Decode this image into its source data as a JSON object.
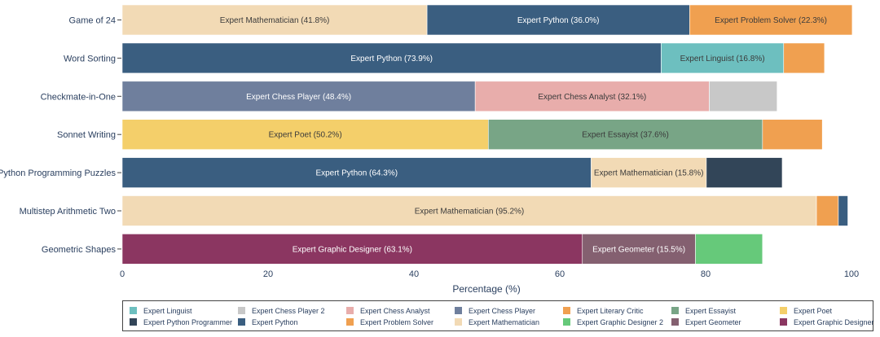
{
  "chart_data": {
    "type": "bar",
    "orientation": "horizontal",
    "stacked": true,
    "xlabel": "Percentage (%)",
    "xlim": [
      0,
      100
    ],
    "xticks": [
      0,
      20,
      40,
      60,
      80,
      100
    ],
    "grid": false,
    "legend_position": "bottom",
    "categories": [
      "Game of 24",
      "Word Sorting",
      "Checkmate-in-One",
      "Sonnet Writing",
      "Python Programming Puzzles",
      "Multistep Arithmetic Two",
      "Geometric Shapes"
    ],
    "rows": [
      {
        "category": "Game of 24",
        "segments": [
          {
            "expert": "Expert Mathematician",
            "value": 41.8,
            "label": "Expert Mathematician (41.8%)"
          },
          {
            "expert": "Expert Python",
            "value": 36.0,
            "label": "Expert Python (36.0%)"
          },
          {
            "expert": "Expert Problem Solver",
            "value": 22.3,
            "label": "Expert Problem Solver (22.3%)"
          }
        ]
      },
      {
        "category": "Word Sorting",
        "segments": [
          {
            "expert": "Expert Python",
            "value": 73.9,
            "label": "Expert Python (73.9%)"
          },
          {
            "expert": "Expert Linguist",
            "value": 16.8,
            "label": "Expert Linguist (16.8%)"
          },
          {
            "expert": "Expert Literary Critic",
            "value": 5.6,
            "label": ""
          }
        ]
      },
      {
        "category": "Checkmate-in-One",
        "segments": [
          {
            "expert": "Expert Chess Player",
            "value": 48.4,
            "label": "Expert Chess Player (48.4%)"
          },
          {
            "expert": "Expert Chess Analyst",
            "value": 32.1,
            "label": "Expert Chess Analyst (32.1%)"
          },
          {
            "expert": "Expert Chess Player 2",
            "value": 9.3,
            "label": ""
          }
        ]
      },
      {
        "category": "Sonnet Writing",
        "segments": [
          {
            "expert": "Expert Poet",
            "value": 50.2,
            "label": "Expert Poet (50.2%)"
          },
          {
            "expert": "Expert Essayist",
            "value": 37.6,
            "label": "Expert Essayist (37.6%)"
          },
          {
            "expert": "Expert Literary Critic",
            "value": 8.2,
            "label": ""
          }
        ]
      },
      {
        "category": "Python Programming Puzzles",
        "segments": [
          {
            "expert": "Expert Python",
            "value": 64.3,
            "label": "Expert Python (64.3%)"
          },
          {
            "expert": "Expert Mathematician",
            "value": 15.8,
            "label": "Expert Mathematician (15.8%)"
          },
          {
            "expert": "Expert Python Programmer",
            "value": 10.4,
            "label": ""
          }
        ]
      },
      {
        "category": "Multistep Arithmetic Two",
        "segments": [
          {
            "expert": "Expert Mathematician",
            "value": 95.2,
            "label": "Expert Mathematician (95.2%)"
          },
          {
            "expert": "Expert Problem Solver",
            "value": 3.0,
            "label": ""
          },
          {
            "expert": "Expert Python",
            "value": 1.3,
            "label": ""
          }
        ]
      },
      {
        "category": "Geometric Shapes",
        "segments": [
          {
            "expert": "Expert Graphic Designer",
            "value": 63.1,
            "label": "Expert Graphic Designer (63.1%)"
          },
          {
            "expert": "Expert Geometer",
            "value": 15.5,
            "label": "Expert Geometer (15.5%)"
          },
          {
            "expert": "Expert Graphic Designer 2",
            "value": 9.2,
            "label": ""
          }
        ]
      }
    ],
    "legend": [
      {
        "name": "Expert Linguist",
        "color": "#6dbfbf"
      },
      {
        "name": "Expert Chess Player 2",
        "color": "#c8c8c8"
      },
      {
        "name": "Expert Chess Analyst",
        "color": "#e8adab"
      },
      {
        "name": "Expert Chess Player",
        "color": "#6f7f9d"
      },
      {
        "name": "Expert Literary Critic",
        "color": "#f0a050"
      },
      {
        "name": "Expert Essayist",
        "color": "#78a586"
      },
      {
        "name": "Expert Poet",
        "color": "#f4cf6a"
      },
      {
        "name": "Expert Python Programmer",
        "color": "#324558"
      },
      {
        "name": "Expert Python",
        "color": "#3a5e80"
      },
      {
        "name": "Expert Problem Solver",
        "color": "#f0a050"
      },
      {
        "name": "Expert Mathematician",
        "color": "#f2dab5"
      },
      {
        "name": "Expert Graphic Designer 2",
        "color": "#66c97a"
      },
      {
        "name": "Expert Geometer",
        "color": "#846070"
      },
      {
        "name": "Expert Graphic Designer",
        "color": "#8b3661"
      }
    ]
  }
}
